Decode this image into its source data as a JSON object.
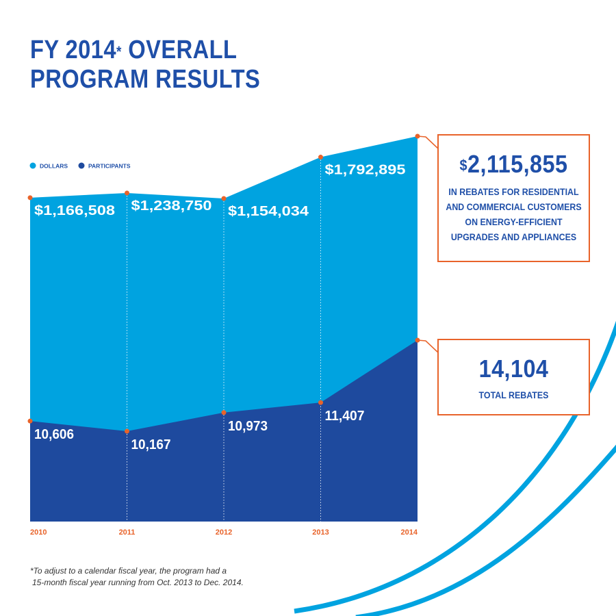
{
  "title": {
    "line1_main": "FY 2014",
    "line1_mark": "*",
    "line1_end": " OVERALL",
    "line2": "PROGRAM RESULTS"
  },
  "colors": {
    "dollars": "#00a3e0",
    "participants": "#1e4a9e",
    "accent": "#e8632a",
    "title": "#1f4fa8",
    "year": "#e8632a"
  },
  "chart_data": {
    "type": "area",
    "title": "FY 2014* OVERALL PROGRAM RESULTS",
    "x": [
      "2010",
      "2011",
      "2012",
      "2013",
      "2014"
    ],
    "legend_position": "top-left",
    "series": [
      {
        "name": "DOLLARS",
        "values": [
          1166508,
          1238750,
          1154034,
          1792895,
          2115855
        ],
        "labels": [
          "$1,166,508",
          "$1,238,750",
          "$1,154,034",
          "$1,792,895",
          null
        ]
      },
      {
        "name": "PARTICIPANTS",
        "values": [
          10606,
          10167,
          10973,
          11407,
          14104
        ],
        "labels": [
          "10,606",
          "10,167",
          "10,973",
          "11,407",
          null
        ]
      }
    ]
  },
  "callouts": {
    "dollars": {
      "currency": "$",
      "value": "2,115,855",
      "line1": "IN REBATES FOR RESIDENTIAL",
      "line2": "AND COMMERCIAL CUSTOMERS",
      "line3": "ON ENERGY-EFFICIENT",
      "line4": "UPGRADES AND APPLIANCES"
    },
    "rebates": {
      "value": "14,104",
      "label": "TOTAL REBATES"
    }
  },
  "footnote": {
    "line1": "*To adjust to a calendar fiscal year, the program had a",
    "line2": "15-month fiscal year running from Oct. 2013 to Dec. 2014."
  }
}
